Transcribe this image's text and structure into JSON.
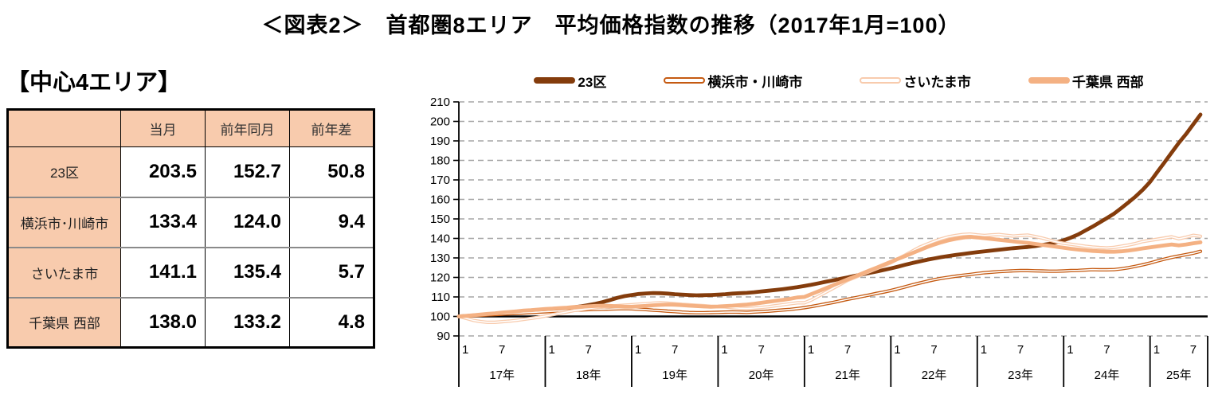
{
  "title": "＜図表2＞　首都圏8エリア　平均価格指数の推移（2017年1月=100）",
  "colors": {
    "table_header_bg": "#F8CBAD",
    "grid_line": "#A6A6A6",
    "baseline": "#000000"
  },
  "left_panel": {
    "heading": "【中心4エリア】",
    "table": {
      "columns": [
        "当月",
        "前年同月",
        "前年差"
      ],
      "rows": [
        {
          "label": "23区",
          "values": [
            "203.5",
            "152.7",
            "50.8"
          ]
        },
        {
          "label": "横浜市･川崎市",
          "values": [
            "133.4",
            "124.0",
            "9.4"
          ]
        },
        {
          "label": "さいたま市",
          "values": [
            "141.1",
            "135.4",
            "5.7"
          ]
        },
        {
          "label": "千葉県 西部",
          "values": [
            "138.0",
            "133.2",
            "4.8"
          ]
        }
      ]
    }
  },
  "chart_data": {
    "type": "line",
    "title": "",
    "xlabel": "",
    "ylabel": "",
    "ylim": [
      90,
      210
    ],
    "ytick_step": 10,
    "baseline": 100,
    "grid": "dashed-horizontal",
    "legend_position": "top",
    "x_start": "2017-01",
    "x_year_labels": [
      "17年",
      "18年",
      "19年",
      "20年",
      "21年",
      "22年",
      "23年",
      "24年",
      "25年"
    ],
    "months_per_year": [
      12,
      12,
      12,
      12,
      12,
      12,
      12,
      12,
      8
    ],
    "month_tick_labels": [
      "1",
      "7"
    ],
    "series": [
      {
        "name": "23区",
        "color": "#843C0C",
        "style": "solid",
        "values": [
          100.0,
          100.2,
          100.5,
          100.7,
          101.0,
          101.2,
          101.4,
          101.6,
          101.9,
          102.1,
          102.3,
          102.6,
          103.0,
          103.4,
          103.8,
          104.2,
          104.7,
          105.2,
          105.8,
          106.5,
          107.4,
          108.4,
          109.5,
          110.4,
          111.0,
          111.5,
          111.8,
          112.0,
          111.9,
          111.7,
          111.4,
          111.2,
          111.0,
          110.8,
          110.9,
          111.0,
          111.2,
          111.4,
          111.7,
          111.9,
          112.1,
          112.4,
          112.8,
          113.2,
          113.6,
          114.0,
          114.5,
          115.0,
          115.6,
          116.3,
          117.0,
          117.8,
          118.5,
          119.3,
          120.0,
          120.8,
          121.5,
          122.3,
          123.0,
          123.8,
          124.6,
          125.5,
          126.5,
          127.4,
          128.2,
          129.0,
          129.7,
          130.4,
          131.0,
          131.5,
          132.0,
          132.5,
          133.0,
          133.4,
          133.8,
          134.2,
          134.6,
          135.0,
          135.3,
          135.6,
          136.0,
          136.6,
          137.2,
          138.0,
          139.0,
          140.4,
          142.0,
          144.0,
          146.0,
          148.2,
          150.4,
          152.7,
          155.5,
          158.5,
          161.5,
          165.0,
          169.0,
          174.0,
          179.0,
          184.0,
          189.0,
          193.5,
          198.5,
          203.5
        ]
      },
      {
        "name": "横浜市・川崎市",
        "color": "#C55A11",
        "style": "outlined",
        "values": [
          100.0,
          100.2,
          100.4,
          100.6,
          100.8,
          101.0,
          101.2,
          101.4,
          101.6,
          101.8,
          102.0,
          102.2,
          102.4,
          102.6,
          102.8,
          103.0,
          103.2,
          103.3,
          103.5,
          103.6,
          103.7,
          103.8,
          103.9,
          104.0,
          103.9,
          103.7,
          103.5,
          103.2,
          103.0,
          102.7,
          102.5,
          102.2,
          102.0,
          101.9,
          101.9,
          102.0,
          102.1,
          102.2,
          102.3,
          102.2,
          102.1,
          102.3,
          102.5,
          102.7,
          103.0,
          103.3,
          103.6,
          104.0,
          104.5,
          105.1,
          105.8,
          106.5,
          107.2,
          108.0,
          108.8,
          109.5,
          110.3,
          111.0,
          111.8,
          112.5,
          113.3,
          114.2,
          115.2,
          116.2,
          117.1,
          118.0,
          118.8,
          119.5,
          120.1,
          120.6,
          121.1,
          121.5,
          122.0,
          122.4,
          122.7,
          123.0,
          123.2,
          123.4,
          123.5,
          123.5,
          123.4,
          123.3,
          123.2,
          123.2,
          123.3,
          123.5,
          123.6,
          123.8,
          124.0,
          123.9,
          123.9,
          124.0,
          124.4,
          125.0,
          125.7,
          126.5,
          127.4,
          128.4,
          129.4,
          130.3,
          131.0,
          131.7,
          132.4,
          133.4
        ]
      },
      {
        "name": "さいたま市",
        "color": "#F8CBAD",
        "style": "outlined",
        "values": [
          100.0,
          99.0,
          98.0,
          97.4,
          97.0,
          97.0,
          97.3,
          97.6,
          98.0,
          98.5,
          99.0,
          99.5,
          100.2,
          100.9,
          101.6,
          102.3,
          103.0,
          103.5,
          104.0,
          104.5,
          104.9,
          105.2,
          105.5,
          105.8,
          106.0,
          106.3,
          106.5,
          106.8,
          107.0,
          106.8,
          106.5,
          106.2,
          106.0,
          105.7,
          105.5,
          105.2,
          105.0,
          104.8,
          104.5,
          104.2,
          104.1,
          104.3,
          104.6,
          105.0,
          105.5,
          106.0,
          106.5,
          107.0,
          107.0,
          108.5,
          110.5,
          112.5,
          114.5,
          116.5,
          118.5,
          120.0,
          121.5,
          123.0,
          124.5,
          126.0,
          127.5,
          129.5,
          131.5,
          133.5,
          135.5,
          137.0,
          138.5,
          139.8,
          140.8,
          141.5,
          142.0,
          142.2,
          141.8,
          141.5,
          141.8,
          142.0,
          141.6,
          141.2,
          141.5,
          141.7,
          141.0,
          140.2,
          139.2,
          138.2,
          137.5,
          137.0,
          136.5,
          136.0,
          135.6,
          135.3,
          135.1,
          135.4,
          136.0,
          136.6,
          137.4,
          138.4,
          139.0,
          139.6,
          140.2,
          140.8,
          139.8,
          140.6,
          141.6,
          141.1
        ]
      },
      {
        "name": "千葉県 西部",
        "color": "#F4B183",
        "style": "solid",
        "values": [
          100.0,
          100.3,
          100.6,
          101.0,
          101.3,
          101.6,
          102.0,
          102.3,
          102.6,
          103.0,
          103.2,
          103.5,
          103.8,
          104.0,
          104.3,
          104.5,
          104.8,
          105.0,
          105.2,
          105.4,
          105.5,
          105.4,
          105.2,
          105.0,
          105.0,
          105.2,
          105.4,
          105.7,
          105.9,
          106.1,
          106.0,
          105.8,
          105.5,
          105.3,
          105.1,
          105.0,
          105.1,
          105.3,
          105.5,
          105.8,
          106.1,
          106.5,
          107.0,
          107.5,
          108.0,
          108.5,
          109.0,
          109.7,
          110.0,
          111.5,
          113.0,
          114.5,
          116.0,
          117.5,
          119.0,
          120.5,
          122.0,
          123.5,
          125.0,
          126.5,
          128.0,
          129.5,
          131.0,
          132.5,
          134.0,
          135.5,
          136.8,
          138.0,
          139.0,
          139.8,
          140.4,
          140.8,
          140.5,
          140.1,
          139.7,
          139.3,
          138.9,
          138.5,
          138.1,
          137.7,
          137.2,
          136.7,
          136.2,
          135.7,
          135.2,
          134.7,
          134.3,
          133.9,
          133.6,
          133.4,
          133.2,
          133.2,
          133.4,
          133.8,
          134.3,
          134.9,
          135.4,
          135.9,
          136.4,
          136.9,
          136.4,
          136.9,
          137.5,
          138.0
        ]
      }
    ]
  }
}
